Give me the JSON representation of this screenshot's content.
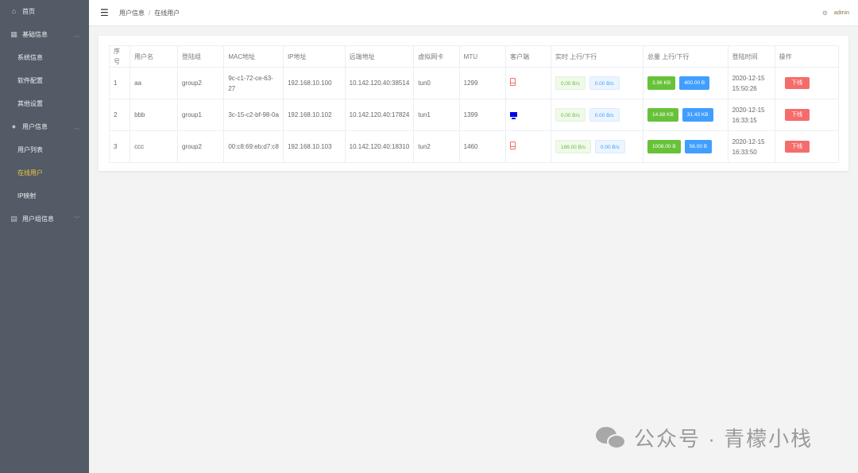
{
  "sidebar": {
    "items": [
      {
        "label": "首页",
        "type": "top",
        "icon": "home-icon"
      },
      {
        "label": "基础信息",
        "type": "top",
        "icon": "grid-icon",
        "chevron": "up"
      },
      {
        "label": "系统信息",
        "type": "sub"
      },
      {
        "label": "软件配置",
        "type": "sub"
      },
      {
        "label": "其他设置",
        "type": "sub"
      },
      {
        "label": "用户信息",
        "type": "top",
        "icon": "user-icon",
        "chevron": "up"
      },
      {
        "label": "用户列表",
        "type": "sub"
      },
      {
        "label": "在线用户",
        "type": "sub",
        "active": true
      },
      {
        "label": "IP映射",
        "type": "sub"
      },
      {
        "label": "用户组信息",
        "type": "top",
        "icon": "clipboard-icon",
        "chevron": "down"
      }
    ]
  },
  "header": {
    "breadcrumb": [
      "用户信息",
      "在线用户"
    ],
    "breadcrumb_sep": "/",
    "user": "admin"
  },
  "table": {
    "columns": [
      "序号",
      "用户名",
      "登陆组",
      "MAC地址",
      "IP地址",
      "远端地址",
      "虚拟网卡",
      "MTU",
      "客户端",
      "实时 上行/下行",
      "总量 上行/下行",
      "登陆时间",
      "操作"
    ],
    "rows": [
      {
        "idx": "1",
        "name": "aa",
        "group": "group2",
        "mac": "9c-c1-72-ce-63-27",
        "ip": "192.168.10.100",
        "remote": "10.142.120.40:38514",
        "nic": "tun0",
        "mtu": "1299",
        "client": "mobile",
        "rt_up": "0.00 B/s",
        "rt_down": "0.00 B/s",
        "tot_up": "3.96 KB",
        "tot_down": "400.00 B",
        "time": "2020-12-15 15:50:26",
        "action": "下线"
      },
      {
        "idx": "2",
        "name": "bbb",
        "group": "group1",
        "mac": "3c-15-c2-bf-98-0a",
        "ip": "192.168.10.102",
        "remote": "10.142.120.40:17824",
        "nic": "tun1",
        "mtu": "1399",
        "client": "desktop",
        "rt_up": "0.00 B/s",
        "rt_down": "0.00 B/s",
        "tot_up": "14.88 KB",
        "tot_down": "31.43 KB",
        "time": "2020-12-15 16:33:15",
        "action": "下线"
      },
      {
        "idx": "3",
        "name": "ccc",
        "group": "group2",
        "mac": "00:c8:69:eb:d7:c8",
        "ip": "192.168.10.103",
        "remote": "10.142.120.40:18310",
        "nic": "tun2",
        "mtu": "1460",
        "client": "mobile",
        "rt_up": "186.00 B/s",
        "rt_down": "0.00 B/s",
        "tot_up": "1008.00 B",
        "tot_down": "56.00 B",
        "time": "2020-12-15 16:33:50",
        "action": "下线"
      }
    ]
  },
  "watermark": "公众号 · 青檬小栈",
  "colors": {
    "sidebar": "#535b66",
    "active": "#f0c63e",
    "success": "#67c23a",
    "primary": "#409eff",
    "danger": "#f56c6c"
  }
}
